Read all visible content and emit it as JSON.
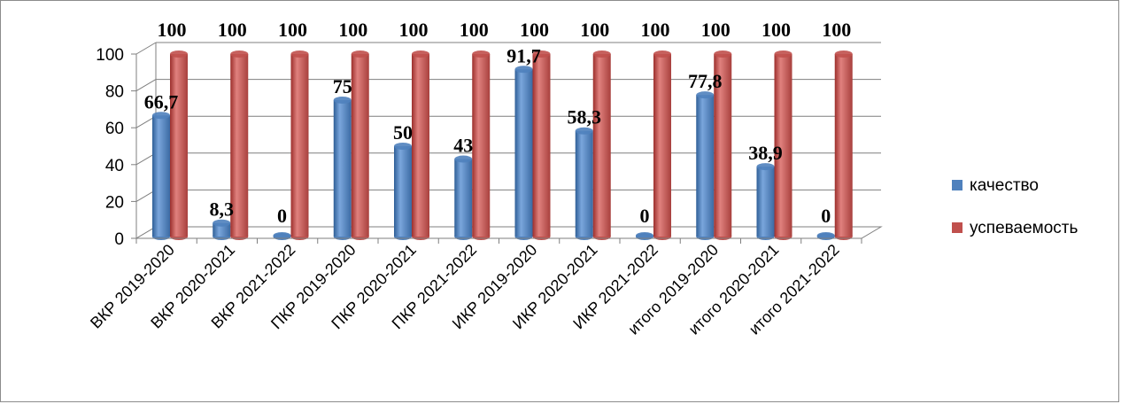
{
  "chart_data": {
    "type": "bar",
    "title": "",
    "xlabel": "",
    "ylabel": "",
    "ylim": [
      0,
      100
    ],
    "yticks": [
      0,
      20,
      40,
      60,
      80,
      100
    ],
    "categories": [
      "ВКР 2019-2020",
      "ВКР 2020-2021",
      "ВКР 2021-2022",
      "ПКР 2019-2020",
      "ПКР 2020-2021",
      "ПКР 2021-2022",
      "ИКР 2019-2020",
      "ИКР 2020-2021",
      "ИКР 2021-2022",
      "итого 2019-2020",
      "итого 2020-2021",
      "итого 2021-2022"
    ],
    "series": [
      {
        "name": "качество",
        "color": "#4f81bd",
        "values": [
          66.7,
          8.3,
          0,
          75,
          50,
          43,
          91.7,
          58.3,
          0,
          77.8,
          38.9,
          0
        ],
        "labels": [
          "66,7",
          "8,3",
          "0",
          "75",
          "50",
          "43",
          "91,7",
          "58,3",
          "0",
          "77,8",
          "38,9",
          "0"
        ]
      },
      {
        "name": "успеваемость",
        "color": "#c0504d",
        "values": [
          100,
          100,
          100,
          100,
          100,
          100,
          100,
          100,
          100,
          100,
          100,
          100
        ],
        "labels": [
          "100",
          "100",
          "100",
          "100",
          "100",
          "100",
          "100",
          "100",
          "100",
          "100",
          "100",
          "100"
        ]
      }
    ],
    "grid": true,
    "legend": "right"
  }
}
